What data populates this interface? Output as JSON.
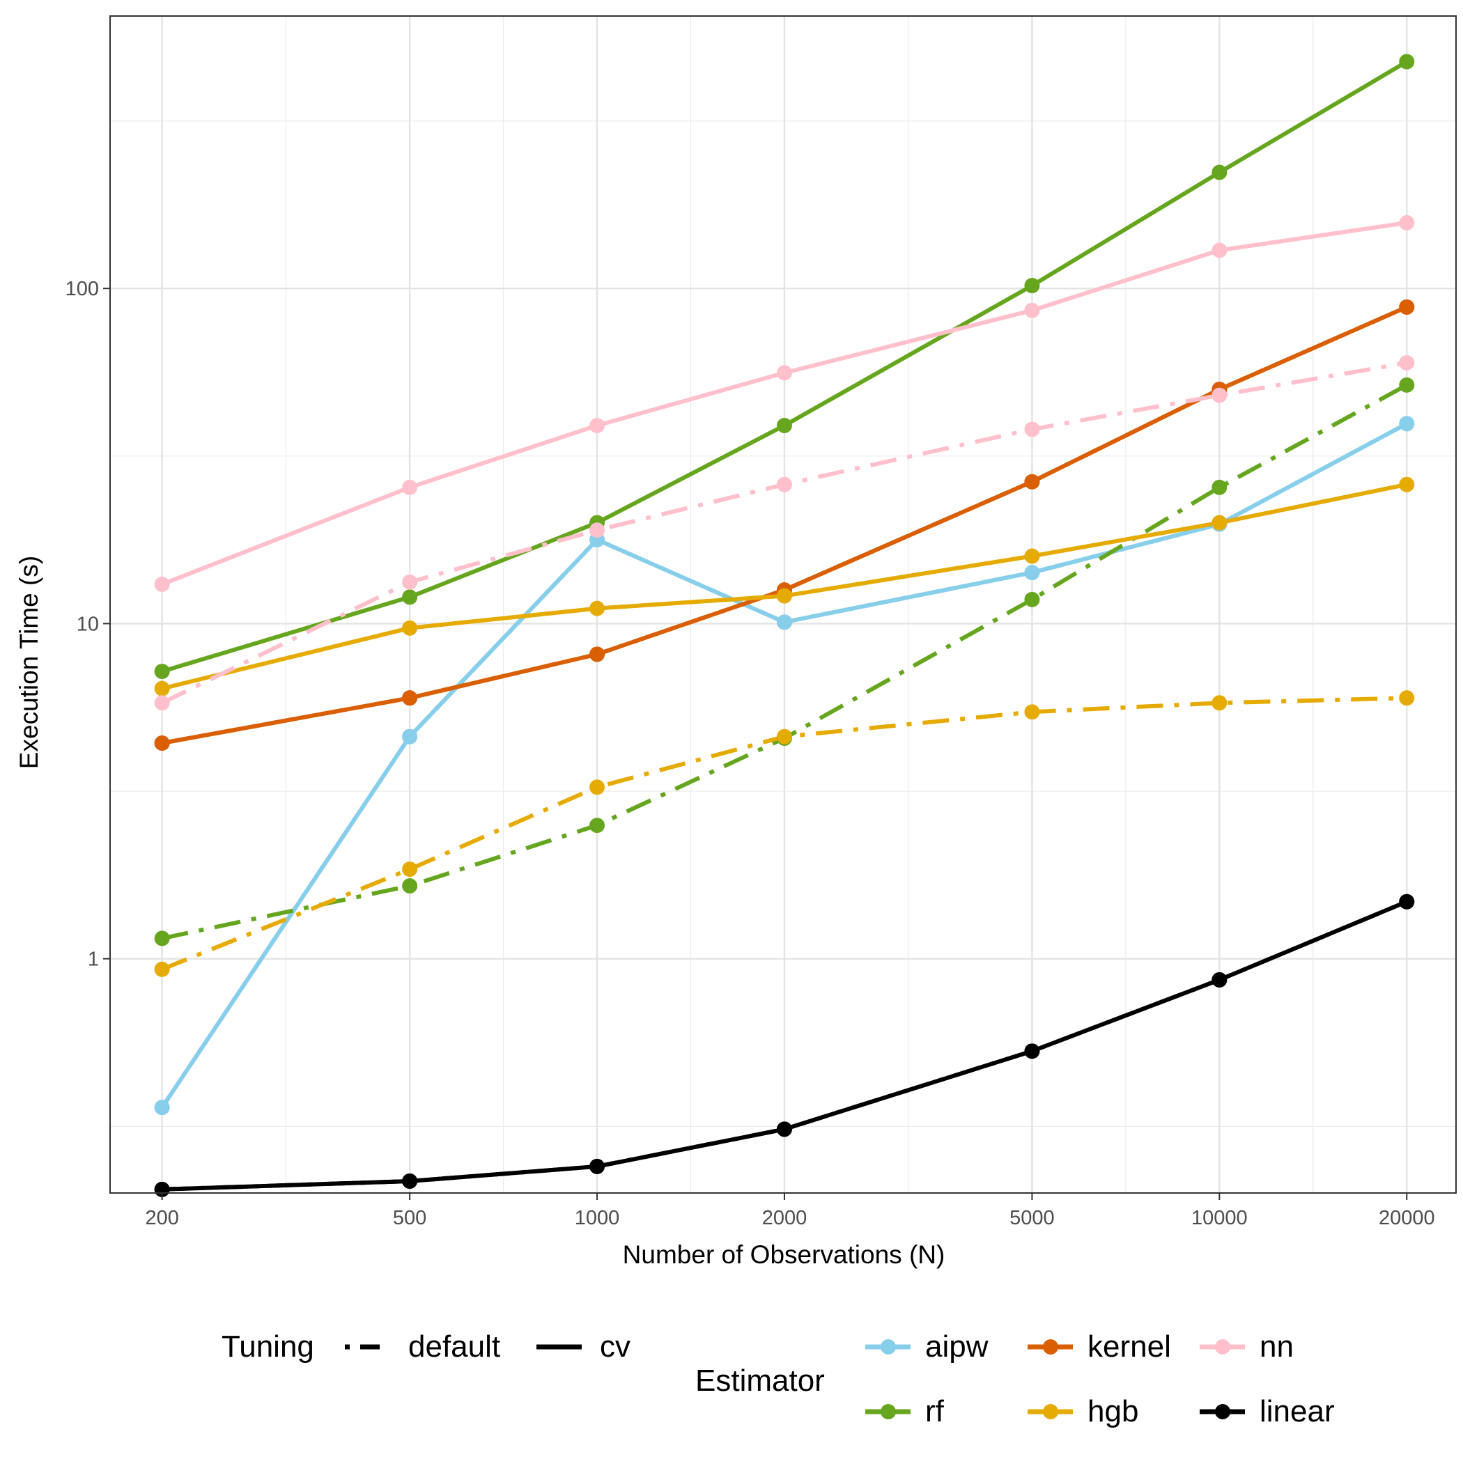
{
  "chart_data": {
    "type": "line",
    "title": "",
    "xlabel": "Number of Observations (N)",
    "ylabel": "Execution Time (s)",
    "x_scale": "log10",
    "y_scale": "log10",
    "x": [
      200,
      500,
      1000,
      2000,
      5000,
      10000,
      20000
    ],
    "x_tick_labels": [
      "200",
      "500",
      "1000",
      "2000",
      "5000",
      "10000",
      "20000"
    ],
    "y_ticks": [
      1,
      10,
      100
    ],
    "y_tick_labels": [
      "1",
      "10",
      "100"
    ],
    "xlim": [
      165,
      24000
    ],
    "ylim": [
      0.2,
      650
    ],
    "grid": true,
    "series": [
      {
        "name": "aipw (cv)",
        "estimator": "aipw",
        "tuning": "cv",
        "color": "#87CEEB",
        "values": [
          0.36,
          4.6,
          17.8,
          10.1,
          14.2,
          19.8,
          39.5
        ]
      },
      {
        "name": "aipw (default)",
        "estimator": "aipw",
        "tuning": "default",
        "color": "#87CEEB",
        "values": [
          0.36,
          4.6,
          17.8,
          10.1,
          14.2,
          19.8,
          39.5
        ]
      },
      {
        "name": "rf (cv)",
        "estimator": "rf",
        "tuning": "cv",
        "color": "#66A61E",
        "values": [
          7.2,
          12.0,
          20.0,
          39.0,
          102.0,
          222.0,
          475.0
        ]
      },
      {
        "name": "rf (default)",
        "estimator": "rf",
        "tuning": "default",
        "color": "#66A61E",
        "values": [
          1.15,
          1.65,
          2.5,
          4.55,
          11.8,
          25.5,
          51.5
        ]
      },
      {
        "name": "kernel (cv)",
        "estimator": "kernel",
        "tuning": "cv",
        "color": "#D95F02",
        "values": [
          4.4,
          6.0,
          8.1,
          12.6,
          26.5,
          50.0,
          88.0
        ]
      },
      {
        "name": "kernel (default)",
        "estimator": "kernel",
        "tuning": "default",
        "color": "#D95F02",
        "values": [
          4.4,
          6.0,
          8.1,
          12.6,
          26.5,
          50.0,
          88.0
        ]
      },
      {
        "name": "hgb (cv)",
        "estimator": "hgb",
        "tuning": "cv",
        "color": "#E6AB02",
        "values": [
          6.4,
          9.7,
          11.1,
          12.1,
          15.9,
          20.0,
          26.0
        ]
      },
      {
        "name": "hgb (default)",
        "estimator": "hgb",
        "tuning": "default",
        "color": "#E6AB02",
        "values": [
          0.93,
          1.85,
          3.25,
          4.6,
          5.45,
          5.8,
          6.0
        ]
      },
      {
        "name": "nn (cv)",
        "estimator": "nn",
        "tuning": "cv",
        "color": "#FFC0CB",
        "values": [
          13.1,
          25.5,
          39.0,
          56.0,
          86.0,
          130.0,
          157.0
        ]
      },
      {
        "name": "nn (default)",
        "estimator": "nn",
        "tuning": "default",
        "color": "#FFC0CB",
        "values": [
          5.8,
          13.3,
          19.0,
          26.0,
          38.0,
          48.0,
          60.0
        ]
      },
      {
        "name": "linear (cv)",
        "estimator": "linear",
        "tuning": "cv",
        "color": "#000000",
        "values": [
          0.205,
          0.217,
          0.24,
          0.31,
          0.53,
          0.865,
          1.48
        ]
      },
      {
        "name": "linear (default)",
        "estimator": "linear",
        "tuning": "default",
        "color": "#000000",
        "values": [
          0.205,
          0.217,
          0.24,
          0.31,
          0.53,
          0.865,
          1.48
        ]
      }
    ],
    "legend": {
      "placement": "bottom",
      "tuning_title": "Tuning",
      "tuning_items": [
        {
          "label": "default",
          "linetype": "dashdot"
        },
        {
          "label": "cv",
          "linetype": "solid"
        }
      ],
      "estimator_title": "Estimator",
      "estimator_items": [
        {
          "label": "aipw",
          "color": "#87CEEB"
        },
        {
          "label": "kernel",
          "color": "#D95F02"
        },
        {
          "label": "nn",
          "color": "#FFC0CB"
        },
        {
          "label": "rf",
          "color": "#66A61E"
        },
        {
          "label": "hgb",
          "color": "#E6AB02"
        },
        {
          "label": "linear",
          "color": "#000000"
        }
      ]
    }
  }
}
